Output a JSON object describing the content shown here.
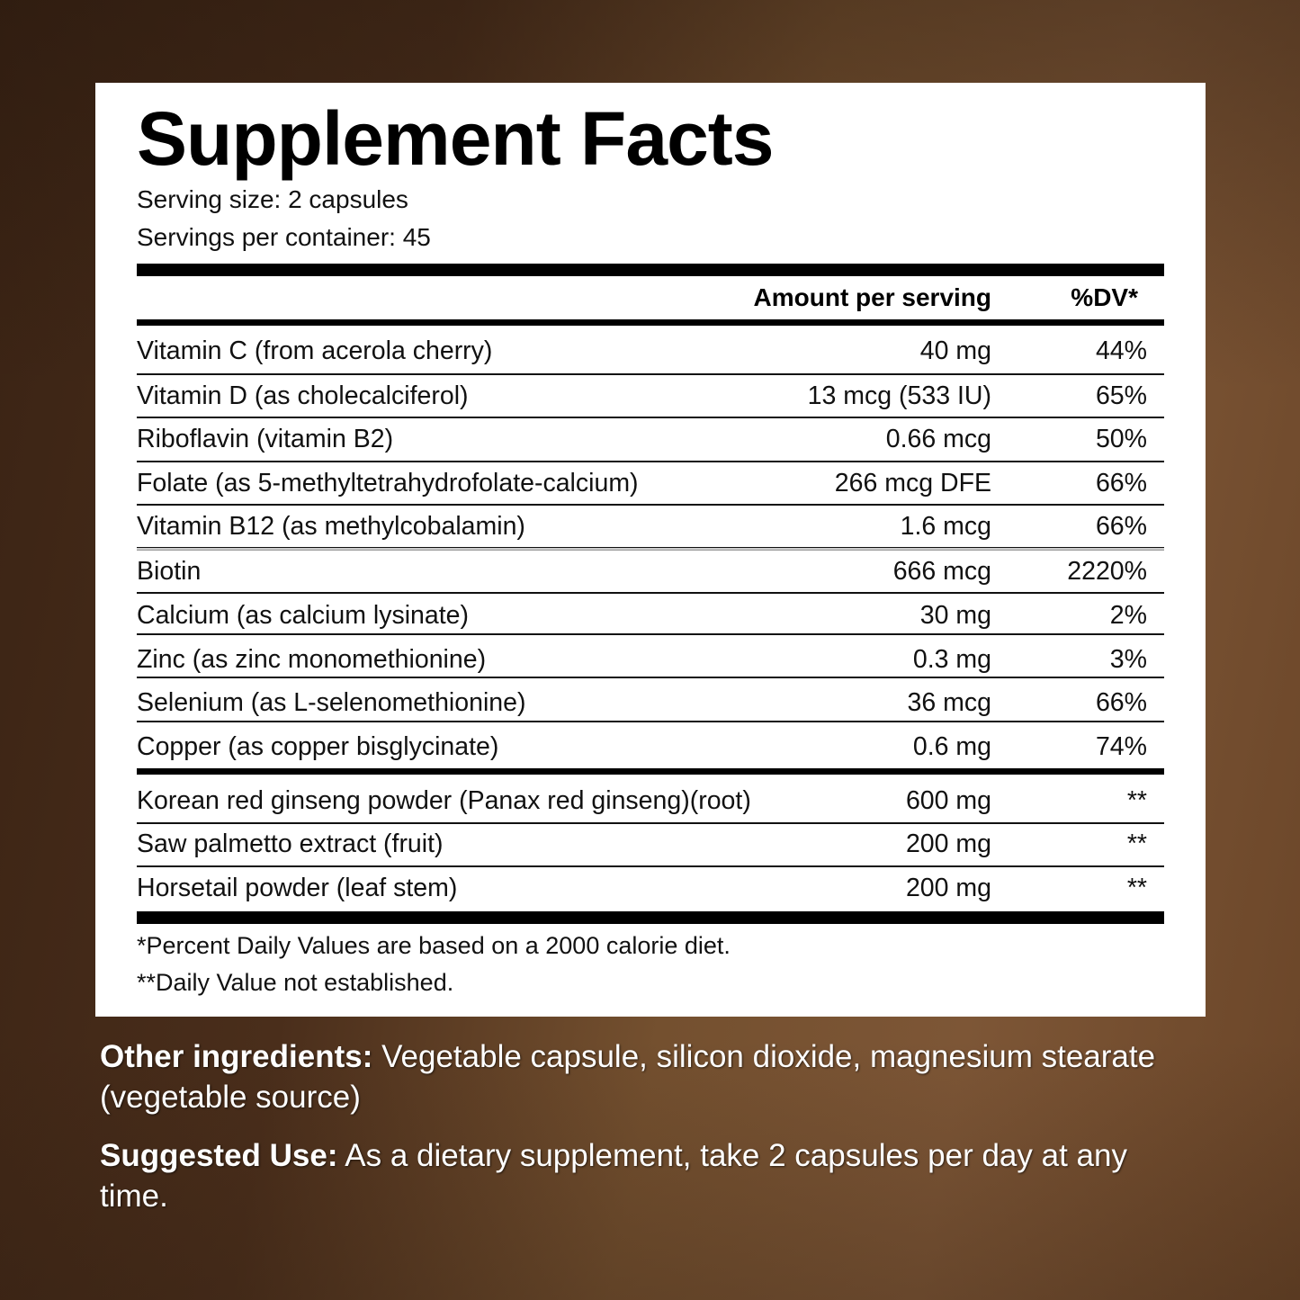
{
  "label": {
    "title": "Supplement Facts",
    "serving_size": "Serving size: 2 capsules",
    "servings_per_container": "Servings per container: 45",
    "columns": {
      "amount": "Amount per serving",
      "dv": "%DV*"
    },
    "vitamins_minerals": [
      {
        "name": "Vitamin C (from acerola cherry)",
        "amount": "40 mg",
        "dv": "44%"
      },
      {
        "name": "Vitamin D (as cholecalciferol)",
        "amount": "13 mcg (533 IU)",
        "dv": "65%"
      },
      {
        "name": "Riboflavin (vitamin B2)",
        "amount": "0.66 mcg",
        "dv": "50%"
      },
      {
        "name": "Folate (as 5-methyltetrahydrofolate-calcium)",
        "amount": "266 mcg DFE",
        "dv": "66%"
      },
      {
        "name": "Vitamin B12 (as methylcobalamin)",
        "amount": "1.6 mcg",
        "dv": "66%"
      },
      {
        "name": "Biotin",
        "amount": "666 mcg",
        "dv": "2220%"
      },
      {
        "name": "Calcium (as calcium lysinate)",
        "amount": "30 mg",
        "dv": "2%"
      },
      {
        "name": "Zinc (as zinc monomethionine)",
        "amount": "0.3 mg",
        "dv": "3%"
      },
      {
        "name": "Selenium (as L-selenomethionine)",
        "amount": "36 mcg",
        "dv": "66%"
      },
      {
        "name": "Copper (as copper bisglycinate)",
        "amount": "0.6 mg",
        "dv": "74%"
      }
    ],
    "botanicals": [
      {
        "name": "Korean red ginseng powder (Panax red ginseng)(root)",
        "amount": "600 mg",
        "dv": "**"
      },
      {
        "name": "Saw palmetto extract (fruit)",
        "amount": "200 mg",
        "dv": "**"
      },
      {
        "name": "Horsetail powder (leaf stem)",
        "amount": "200 mg",
        "dv": "**"
      }
    ],
    "footnotes": [
      "*Percent Daily Values are based on a 2000 calorie diet.",
      "**Daily Value not established."
    ]
  },
  "other_ingredients": {
    "label": "Other ingredients:",
    "text": "Vegetable capsule, silicon dioxide, magnesium stearate (vegetable source)"
  },
  "suggested_use": {
    "label": "Suggested Use:",
    "text": "As a dietary supplement, take 2 capsules per day at any time."
  }
}
